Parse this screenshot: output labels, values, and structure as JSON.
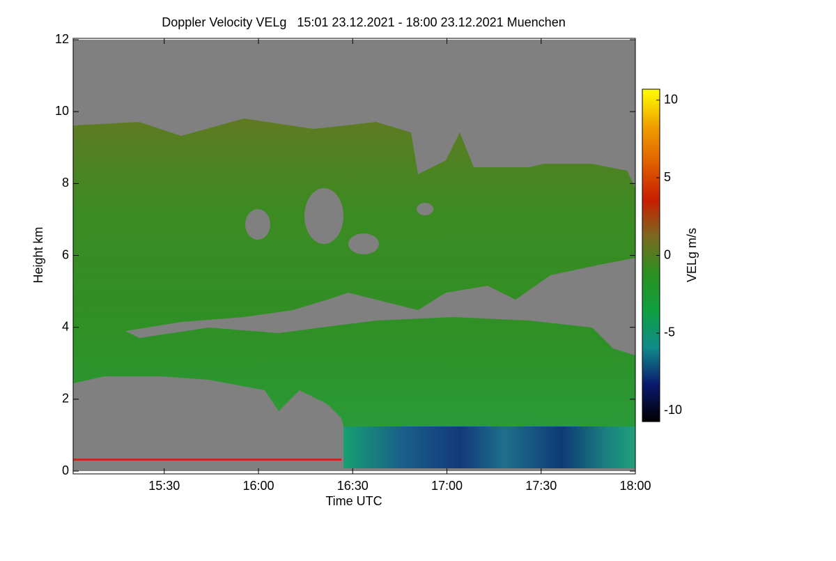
{
  "chart_data": {
    "type": "heatmap",
    "title": "Doppler Velocity VELg   15:01 23.12.2021 - 18:00 23.12.2021 Muenchen",
    "x_label": "Time UTC",
    "y_label": "Height km",
    "xlim": [
      901,
      1080
    ],
    "xticks": [
      {
        "value": 930,
        "label": "15:30"
      },
      {
        "value": 960,
        "label": "16:00"
      },
      {
        "value": 990,
        "label": "16:30"
      },
      {
        "value": 1020,
        "label": "17:00"
      },
      {
        "value": 1050,
        "label": "17:30"
      },
      {
        "value": 1080,
        "label": "18:00"
      }
    ],
    "ylim": [
      0,
      12
    ],
    "yticks": [
      0,
      2,
      4,
      6,
      8,
      10,
      12
    ],
    "colorbar": {
      "label": "VELg m/s",
      "lim": [
        -10.7,
        10.7
      ],
      "ticks": [
        -10,
        -5,
        0,
        5,
        10
      ],
      "colors": [
        "#000000",
        "#0a1a6e",
        "#108a8a",
        "#10a040",
        "#2a9020",
        "#7a6a20",
        "#c81e00",
        "#e06000",
        "#f0a000",
        "#ffff00"
      ]
    }
  }
}
